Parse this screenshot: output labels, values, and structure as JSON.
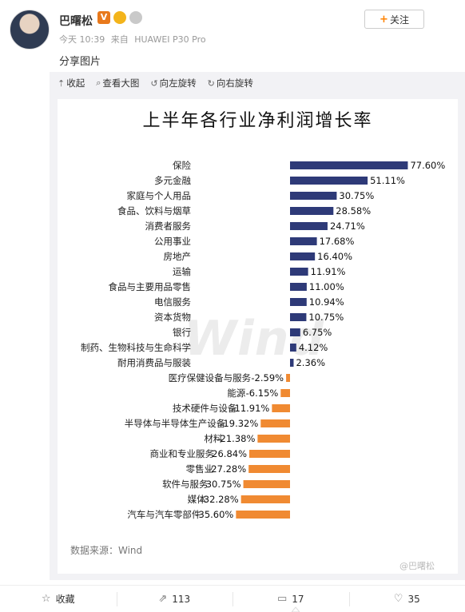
{
  "post": {
    "username": "巴曙松",
    "badge_v": "V",
    "time": "今天 10:39",
    "source_prefix": "来自",
    "device": "HUAWEI P30 Pro",
    "text": "分享图片",
    "follow_label": "关注",
    "follow_icon": "+"
  },
  "toolbar": {
    "collapse": "收起",
    "view_large": "查看大图",
    "rotate_left": "向左旋转",
    "rotate_right": "向右旋转"
  },
  "image": {
    "watermark": "Wind",
    "source_note": "数据来源：Wind",
    "corner_mark": "@巴曙松"
  },
  "actions": {
    "favorite": "收藏",
    "repost": "113",
    "comment": "17",
    "like": "35"
  },
  "colors": {
    "positive_bar": "#2e3a78",
    "negative_bar": "#f08a32",
    "accent": "#ff8200"
  },
  "chart_data": {
    "type": "bar",
    "orientation": "horizontal",
    "title": "上半年各行业净利润增长率",
    "categories": [
      "保险",
      "多元金融",
      "家庭与个人用品",
      "食品、饮料与烟草",
      "消费者服务",
      "公用事业",
      "房地产",
      "运输",
      "食品与主要用品零售",
      "电信服务",
      "资本货物",
      "银行",
      "制药、生物科技与生命科学",
      "耐用消费品与服装",
      "医疗保健设备与服务",
      "能源",
      "技术硬件与设备",
      "半导体与半导体生产设备",
      "材料",
      "商业和专业服务",
      "零售业",
      "软件与服务",
      "媒体",
      "汽车与汽车零部件"
    ],
    "values": [
      77.6,
      51.11,
      30.75,
      28.58,
      24.71,
      17.68,
      16.4,
      11.91,
      11.0,
      10.94,
      10.75,
      6.75,
      4.12,
      2.36,
      -2.59,
      -6.15,
      -11.91,
      -19.32,
      -21.38,
      -26.84,
      -27.28,
      -30.75,
      -32.28,
      -35.6
    ],
    "labels": [
      "77.60%",
      "51.11%",
      "30.75%",
      "28.58%",
      "24.71%",
      "17.68%",
      "16.40%",
      "11.91%",
      "11.00%",
      "10.94%",
      "10.75%",
      "6.75%",
      "4.12%",
      "2.36%",
      "-2.59%",
      "-6.15%",
      "-11.91%",
      "-19.32%",
      "-21.38%",
      "-26.84%",
      "-27.28%",
      "-30.75%",
      "-32.28%",
      "-35.60%"
    ]
  }
}
